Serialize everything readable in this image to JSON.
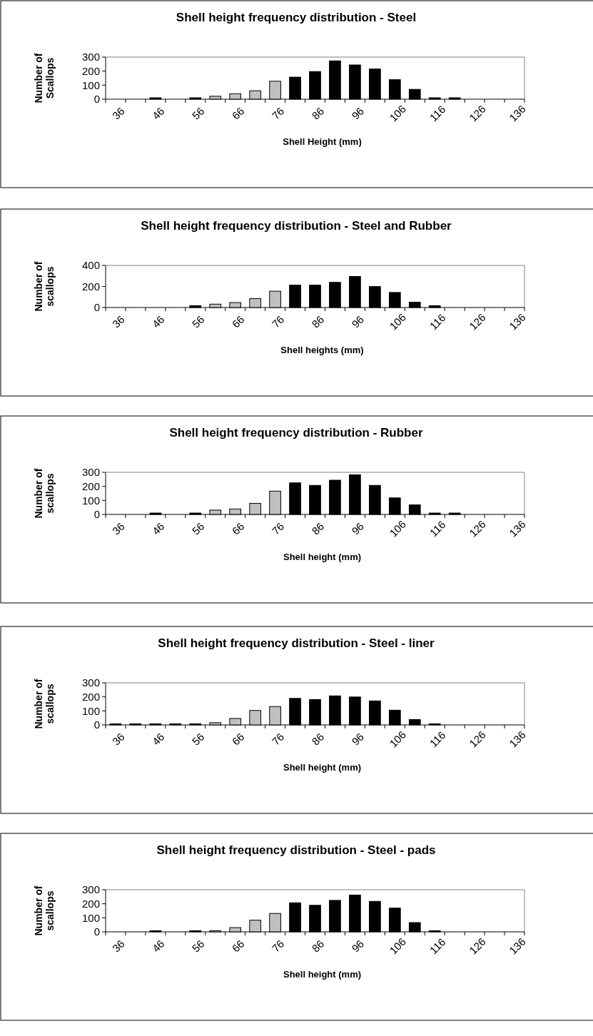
{
  "chart_data": [
    {
      "type": "bar",
      "title": "Shell height frequency distribution - Steel",
      "xlabel": "Shell Height (mm)",
      "ylabel": "Number of Scallops",
      "categories": [
        "36",
        null,
        "46",
        null,
        "56",
        null,
        "66",
        null,
        "76",
        null,
        "86",
        null,
        "96",
        null,
        "106",
        null,
        "116",
        null,
        "126",
        null,
        "136"
      ],
      "values": [
        0,
        0,
        10,
        0,
        10,
        21,
        39,
        60,
        128,
        157,
        197,
        273,
        244,
        215,
        139,
        70,
        10,
        10,
        0,
        0,
        0
      ],
      "colors": [
        "#000000",
        "#000000",
        "#000000",
        "#000000",
        "#000000",
        "#c0c0c0",
        "#c0c0c0",
        "#c0c0c0",
        "#c0c0c0",
        "#000000",
        "#000000",
        "#000000",
        "#000000",
        "#000000",
        "#000000",
        "#000000",
        "#000000",
        "#000000",
        "#000000",
        "#000000",
        "#000000"
      ],
      "ylim": [
        0,
        300
      ],
      "yticks": [
        0,
        100,
        200,
        300
      ]
    },
    {
      "type": "bar",
      "title": "Shell height frequency distribution - Steel and Rubber",
      "xlabel": "Shell heights (mm)",
      "ylabel": "Number of scallops",
      "categories": [
        "36",
        null,
        "46",
        null,
        "56",
        null,
        "66",
        null,
        "76",
        null,
        "86",
        null,
        "96",
        null,
        "106",
        null,
        "116",
        null,
        "126",
        null,
        "136"
      ],
      "values": [
        0,
        0,
        0,
        0,
        18,
        32,
        47,
        85,
        155,
        213,
        213,
        239,
        295,
        199,
        143,
        50,
        18,
        0,
        0,
        0,
        0
      ],
      "colors": [
        "#000000",
        "#000000",
        "#000000",
        "#000000",
        "#000000",
        "#c0c0c0",
        "#c0c0c0",
        "#c0c0c0",
        "#c0c0c0",
        "#000000",
        "#000000",
        "#000000",
        "#000000",
        "#000000",
        "#000000",
        "#000000",
        "#000000",
        "#000000",
        "#000000",
        "#000000",
        "#000000"
      ],
      "ylim": [
        0,
        400
      ],
      "yticks": [
        0,
        200,
        400
      ]
    },
    {
      "type": "bar",
      "title": "Shell height frequency distribution - Rubber",
      "xlabel": "Shell height (mm)",
      "ylabel": "Number of scallops",
      "categories": [
        "36",
        null,
        "46",
        null,
        "56",
        null,
        "66",
        null,
        "76",
        null,
        "86",
        null,
        "96",
        null,
        "106",
        null,
        "116",
        null,
        "126",
        null,
        "136"
      ],
      "values": [
        0,
        0,
        10,
        0,
        10,
        31,
        39,
        79,
        166,
        225,
        207,
        244,
        283,
        207,
        118,
        68,
        10,
        10,
        0,
        0,
        0
      ],
      "colors": [
        "#000000",
        "#000000",
        "#000000",
        "#000000",
        "#000000",
        "#c0c0c0",
        "#c0c0c0",
        "#c0c0c0",
        "#c0c0c0",
        "#000000",
        "#000000",
        "#000000",
        "#000000",
        "#000000",
        "#000000",
        "#000000",
        "#000000",
        "#000000",
        "#000000",
        "#000000",
        "#000000"
      ],
      "ylim": [
        0,
        300
      ],
      "yticks": [
        0,
        100,
        200,
        300
      ]
    },
    {
      "type": "bar",
      "title": "Shell height frequency distribution - Steel - liner",
      "xlabel": "Shell height (mm)",
      "ylabel": "Number of scallops",
      "categories": [
        "36",
        null,
        "46",
        null,
        "56",
        null,
        "66",
        null,
        "76",
        null,
        "86",
        null,
        "96",
        null,
        "106",
        null,
        "116",
        null,
        "126",
        null,
        "136"
      ],
      "values": [
        8,
        8,
        8,
        8,
        8,
        16,
        46,
        103,
        131,
        189,
        181,
        207,
        199,
        171,
        105,
        38,
        8,
        0,
        0,
        0,
        0
      ],
      "colors": [
        "#000000",
        "#000000",
        "#000000",
        "#000000",
        "#000000",
        "#c0c0c0",
        "#c0c0c0",
        "#c0c0c0",
        "#c0c0c0",
        "#000000",
        "#000000",
        "#000000",
        "#000000",
        "#000000",
        "#000000",
        "#000000",
        "#000000",
        "#000000",
        "#000000",
        "#000000",
        "#000000"
      ],
      "ylim": [
        0,
        300
      ],
      "yticks": [
        0,
        100,
        200,
        300
      ]
    },
    {
      "type": "bar",
      "title": "Shell height frequency distribution - Steel - pads",
      "xlabel": "Shell height (mm)",
      "ylabel": "Number of scallops",
      "categories": [
        "36",
        null,
        "46",
        null,
        "56",
        null,
        "66",
        null,
        "76",
        null,
        "86",
        null,
        "96",
        null,
        "106",
        null,
        "116",
        null,
        "126",
        null,
        "136"
      ],
      "values": [
        0,
        0,
        8,
        0,
        8,
        8,
        30,
        83,
        131,
        207,
        189,
        224,
        262,
        217,
        169,
        66,
        8,
        0,
        0,
        0,
        0
      ],
      "colors": [
        "#000000",
        "#000000",
        "#000000",
        "#000000",
        "#000000",
        "#c0c0c0",
        "#c0c0c0",
        "#c0c0c0",
        "#c0c0c0",
        "#000000",
        "#000000",
        "#000000",
        "#000000",
        "#000000",
        "#000000",
        "#000000",
        "#000000",
        "#000000",
        "#000000",
        "#000000",
        "#000000"
      ],
      "ylim": [
        0,
        300
      ],
      "yticks": [
        0,
        100,
        200,
        300
      ]
    }
  ]
}
